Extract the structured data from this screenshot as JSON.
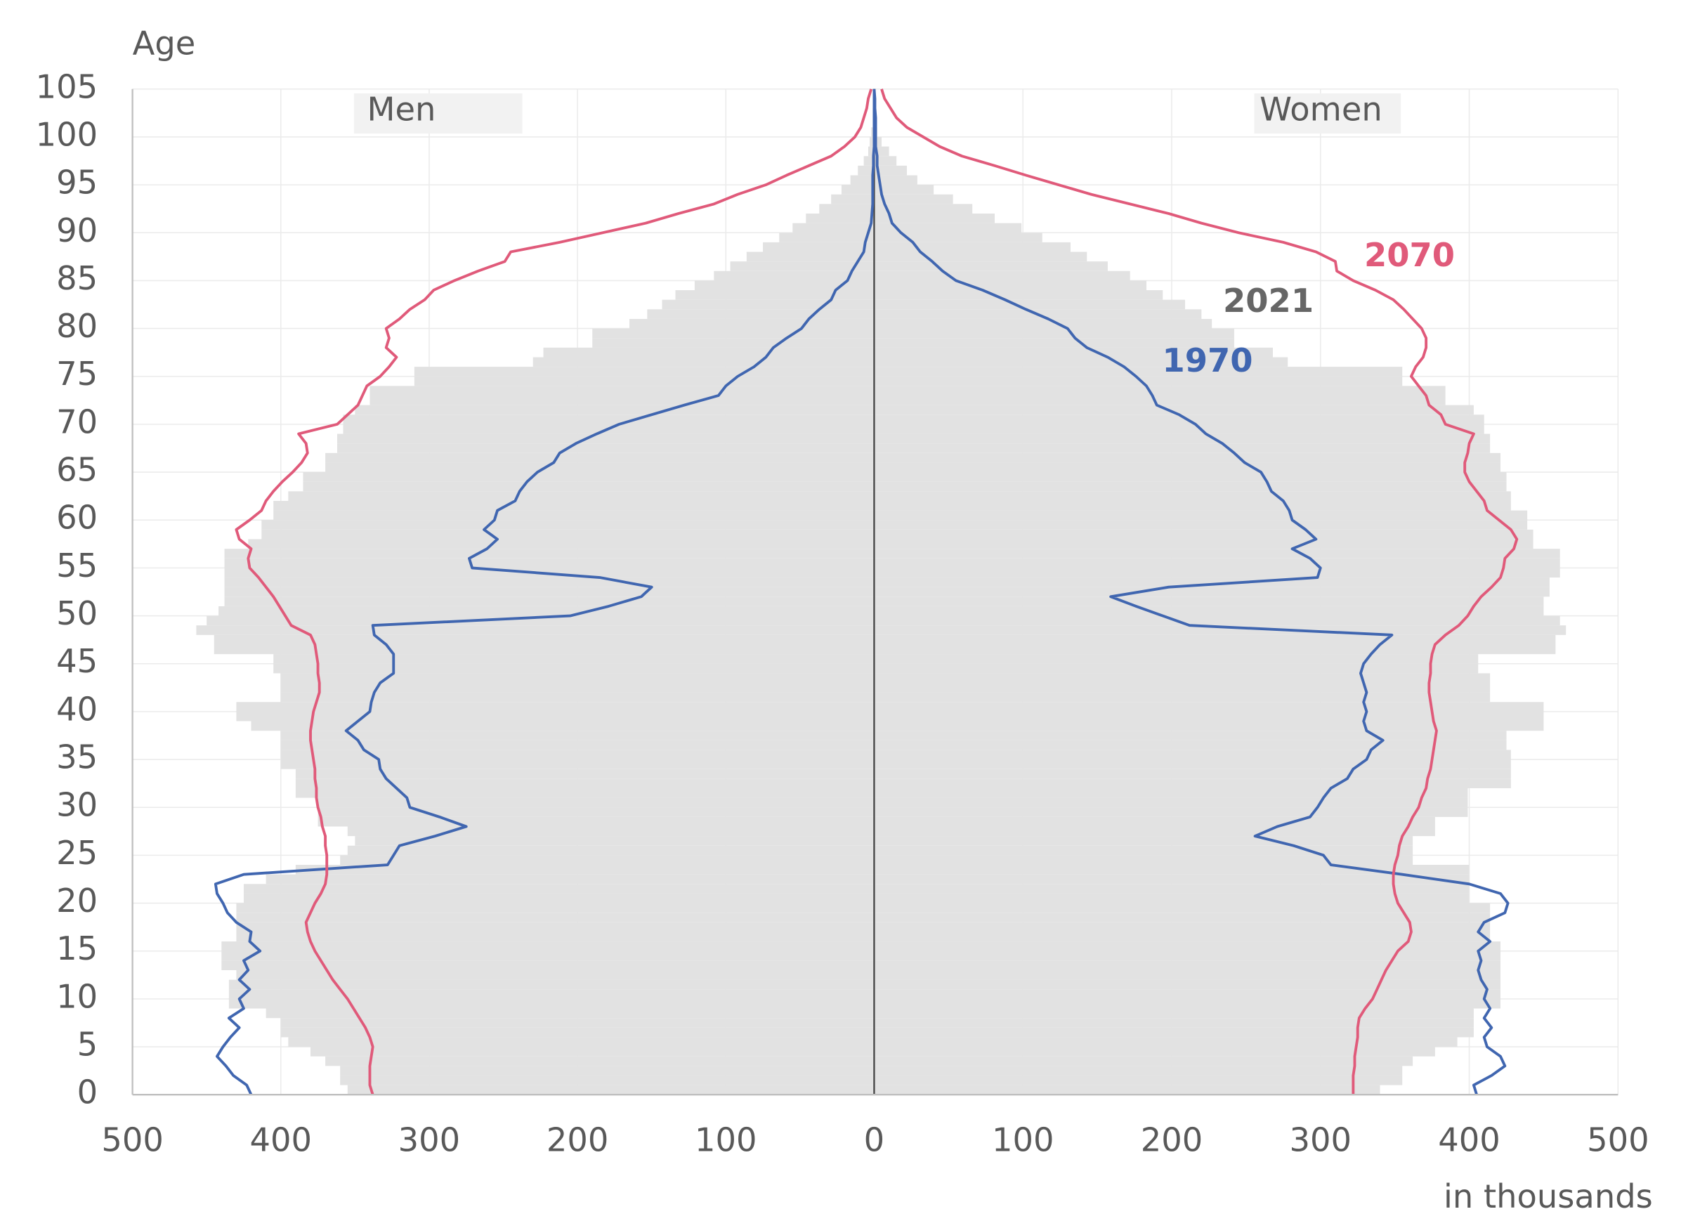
{
  "chart_data": {
    "type": "pyramid",
    "ylabel": "Age",
    "xlabel": "in thousands",
    "left_label": "Men",
    "right_label": "Women",
    "xlim": [
      0,
      500
    ],
    "xticks": [
      0,
      100,
      200,
      300,
      400,
      500
    ],
    "ylim": [
      0,
      105
    ],
    "yticks": [
      0,
      5,
      10,
      15,
      20,
      25,
      30,
      35,
      40,
      45,
      50,
      55,
      60,
      65,
      70,
      75,
      80,
      85,
      90,
      95,
      100,
      105
    ],
    "grid": true,
    "ages": [
      0,
      1,
      2,
      3,
      4,
      5,
      6,
      7,
      8,
      9,
      10,
      11,
      12,
      13,
      14,
      15,
      16,
      17,
      18,
      19,
      20,
      21,
      22,
      23,
      24,
      25,
      26,
      27,
      28,
      29,
      30,
      31,
      32,
      33,
      34,
      35,
      36,
      37,
      38,
      39,
      40,
      41,
      42,
      43,
      44,
      45,
      46,
      47,
      48,
      49,
      50,
      51,
      52,
      53,
      54,
      55,
      56,
      57,
      58,
      59,
      60,
      61,
      62,
      63,
      64,
      65,
      66,
      67,
      68,
      69,
      70,
      71,
      72,
      73,
      74,
      75,
      76,
      77,
      78,
      79,
      80,
      81,
      82,
      83,
      84,
      85,
      86,
      87,
      88,
      89,
      90,
      91,
      92,
      93,
      94,
      95,
      96,
      97,
      98,
      99,
      100,
      101,
      102,
      103,
      104,
      105
    ],
    "series": [
      {
        "name": "2021",
        "color": "#e2e2e2",
        "label_color": "#666666",
        "style": "bars",
        "men": [
          355,
          360,
          360,
          370,
          380,
          395,
          400,
          400,
          410,
          435,
          435,
          435,
          430,
          440,
          440,
          440,
          430,
          430,
          430,
          430,
          425,
          425,
          410,
          390,
          360,
          355,
          350,
          355,
          375,
          375,
          375,
          390,
          390,
          390,
          400,
          400,
          400,
          400,
          420,
          430,
          430,
          400,
          400,
          400,
          405,
          405,
          445,
          445,
          457,
          450,
          442,
          438,
          438,
          438,
          438,
          438,
          438,
          422,
          413,
          413,
          405,
          405,
          395,
          385,
          385,
          370,
          370,
          362,
          362,
          358,
          358,
          350,
          340,
          340,
          310,
          310,
          230,
          223,
          190,
          190,
          165,
          153,
          143,
          134,
          121,
          108,
          97,
          86,
          75,
          64,
          55,
          46,
          37,
          29,
          22,
          16,
          11,
          7,
          4,
          3,
          2,
          1,
          1,
          0,
          0,
          0
        ],
        "women": [
          340,
          355,
          355,
          362,
          377,
          392,
          403,
          403,
          403,
          421,
          421,
          421,
          421,
          421,
          421,
          421,
          414,
          414,
          414,
          414,
          400,
          400,
          400,
          400,
          362,
          362,
          362,
          377,
          377,
          399,
          399,
          399,
          428,
          428,
          428,
          428,
          425,
          425,
          450,
          450,
          450,
          414,
          414,
          414,
          406,
          406,
          458,
          458,
          465,
          461,
          450,
          450,
          454,
          454,
          461,
          461,
          461,
          443,
          443,
          439,
          439,
          428,
          428,
          425,
          425,
          421,
          421,
          414,
          414,
          410,
          410,
          403,
          384,
          384,
          355,
          355,
          278,
          268,
          242,
          242,
          227,
          220,
          209,
          194,
          183,
          172,
          157,
          143,
          132,
          113,
          99,
          81,
          66,
          53,
          40,
          29,
          22,
          15,
          10,
          5,
          2,
          1,
          1,
          0,
          0,
          0
        ]
      },
      {
        "name": "1970",
        "color": "#4066b0",
        "label_color": "#4066b0",
        "style": "line",
        "men": [
          420,
          423,
          432,
          437,
          443,
          439,
          434,
          428,
          435,
          425,
          428,
          421,
          428,
          422,
          425,
          414,
          421,
          420,
          430,
          436,
          439,
          443,
          444,
          425,
          328,
          324,
          320,
          296,
          275,
          293,
          313,
          315,
          322,
          329,
          333,
          334,
          344,
          348,
          356,
          348,
          340,
          339,
          337,
          333,
          324,
          324,
          324,
          329,
          337,
          338,
          205,
          179,
          157,
          150,
          185,
          271,
          273,
          261,
          254,
          263,
          256,
          254,
          242,
          239,
          234,
          227,
          216,
          212,
          201,
          187,
          172,
          150,
          128,
          105,
          100,
          92,
          81,
          73,
          68,
          59,
          49,
          44,
          37,
          29,
          26,
          18,
          15,
          11,
          7,
          6,
          4,
          2,
          1.5,
          1,
          1,
          1,
          1,
          0.5,
          0.5,
          0,
          0,
          0,
          0,
          0,
          0,
          0
        ],
        "women": [
          405,
          403,
          415,
          424,
          421,
          412,
          410,
          415,
          410,
          414,
          410,
          412,
          408,
          406,
          408,
          406,
          414,
          406,
          410,
          424,
          426,
          421,
          400,
          355,
          307,
          302,
          282,
          256,
          271,
          293,
          298,
          302,
          307,
          318,
          322,
          331,
          334,
          342,
          331,
          329,
          331,
          329,
          331,
          329,
          327,
          329,
          334,
          340,
          348,
          212,
          194,
          176,
          159,
          198,
          298,
          300,
          293,
          281,
          297,
          290,
          281,
          279,
          275,
          267,
          264,
          260,
          249,
          242,
          234,
          223,
          216,
          205,
          190,
          187,
          183,
          176,
          168,
          157,
          143,
          135,
          130,
          117,
          102,
          88,
          73,
          55,
          46,
          39,
          31,
          26,
          18,
          12,
          10,
          7,
          5,
          4,
          3,
          2,
          2,
          1,
          1,
          1,
          1,
          0.5,
          0.5,
          0
        ]
      },
      {
        "name": "2070",
        "color": "#e05a7a",
        "label_color": "#e05a7a",
        "style": "line",
        "men": [
          338,
          340,
          340,
          340,
          339,
          338,
          340,
          343,
          347,
          351,
          355,
          360,
          365,
          369,
          373,
          377,
          380,
          382,
          383,
          380,
          377,
          373,
          370,
          369,
          369,
          369,
          370,
          370,
          372,
          373,
          375,
          376,
          376,
          377,
          377,
          378,
          379,
          380,
          380,
          379,
          378,
          376,
          374,
          374,
          375,
          375,
          376,
          377,
          380,
          393,
          397,
          401,
          405,
          410,
          415,
          421,
          422,
          420,
          428,
          430,
          421,
          413,
          410,
          405,
          399,
          392,
          386,
          382,
          383,
          388,
          362,
          355,
          348,
          345,
          342,
          333,
          327,
          322,
          329,
          327,
          329,
          320,
          313,
          303,
          297,
          283,
          267,
          249,
          245,
          212,
          183,
          154,
          132,
          108,
          92,
          73,
          59,
          44,
          29,
          20,
          13,
          9,
          7,
          5,
          4,
          2
        ],
        "women": [
          322,
          322,
          322,
          323,
          323,
          324,
          325,
          325,
          326,
          330,
          335,
          338,
          341,
          344,
          348,
          352,
          359,
          361,
          360,
          356,
          352,
          350,
          349,
          349,
          350,
          352,
          353,
          355,
          359,
          362,
          366,
          368,
          371,
          372,
          374,
          375,
          376,
          377,
          378,
          376,
          375,
          374,
          373,
          373,
          374,
          374,
          375,
          377,
          384,
          393,
          399,
          403,
          408,
          415,
          421,
          423,
          424,
          430,
          432,
          428,
          420,
          412,
          410,
          405,
          400,
          397,
          397,
          399,
          400,
          403,
          384,
          381,
          373,
          371,
          366,
          361,
          364,
          369,
          371,
          371,
          368,
          362,
          356,
          349,
          337,
          322,
          311,
          310,
          297,
          275,
          245,
          220,
          198,
          172,
          146,
          124,
          102,
          81,
          59,
          44,
          33,
          22,
          15,
          11,
          7,
          5
        ]
      }
    ]
  }
}
